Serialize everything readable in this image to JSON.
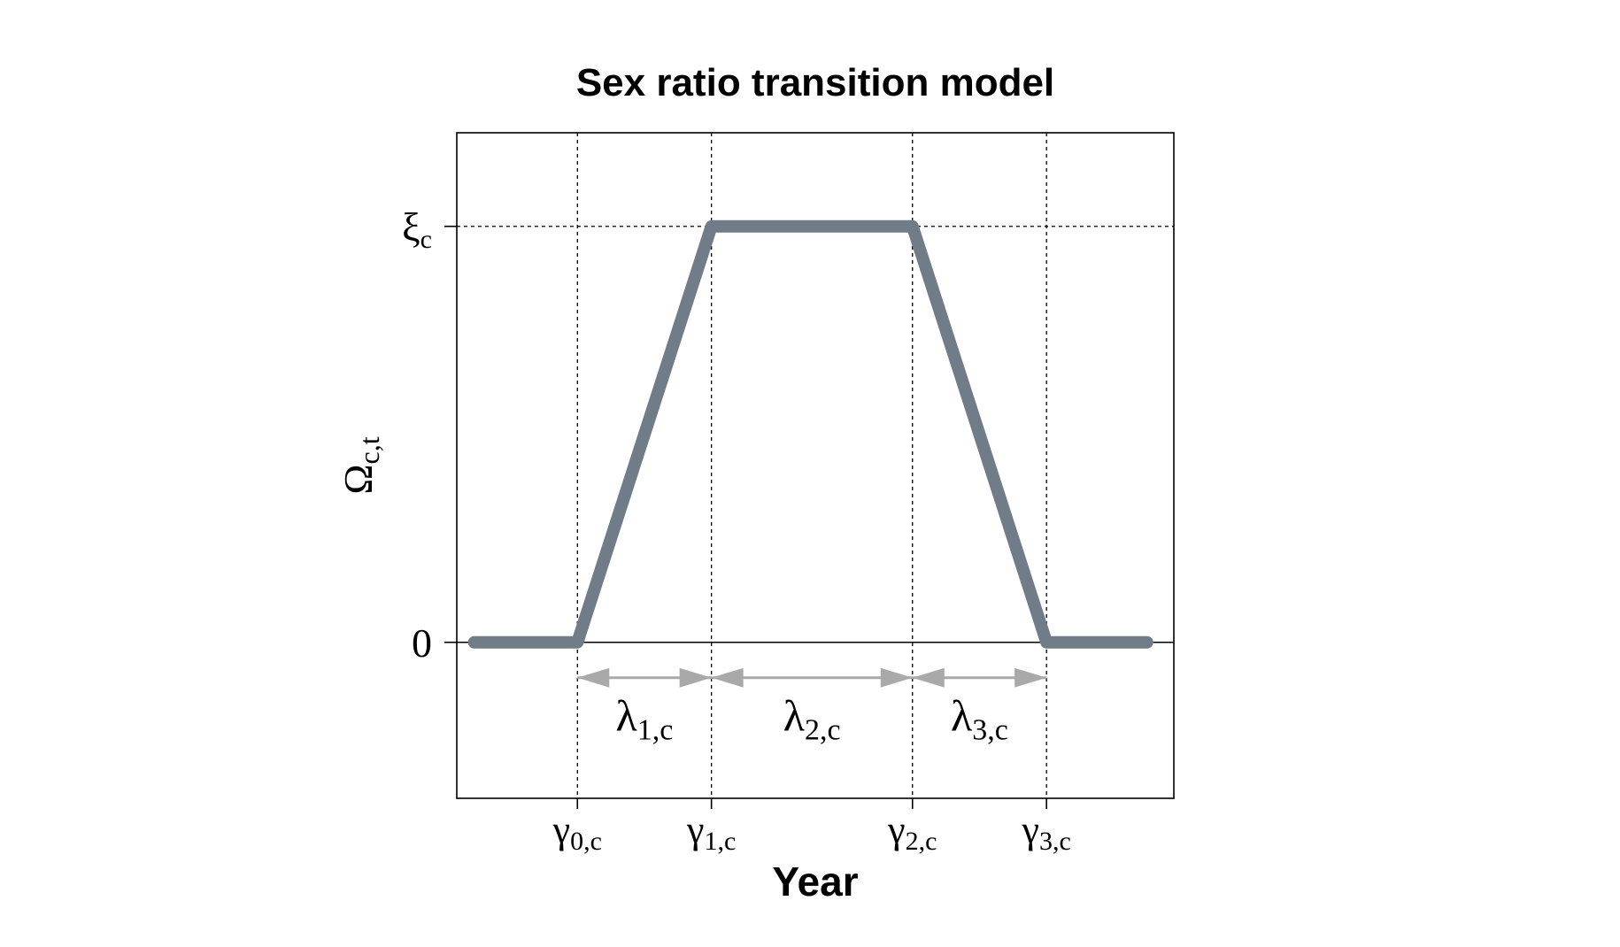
{
  "chart_data": {
    "type": "line",
    "title": "Sex ratio transition model",
    "xlabel": "Year",
    "ylabel": {
      "symbol": "Ω",
      "subscript": "c,t"
    },
    "y_ticks": [
      {
        "value": 0,
        "symbol": "0",
        "subscript": ""
      },
      {
        "value": 1,
        "symbol": "ξ",
        "subscript": "c"
      }
    ],
    "x_ticks": [
      {
        "value": 1,
        "symbol": "γ",
        "subscript": "0,c"
      },
      {
        "value": 2,
        "symbol": "γ",
        "subscript": "1,c"
      },
      {
        "value": 3.5,
        "symbol": "γ",
        "subscript": "2,c"
      },
      {
        "value": 4.5,
        "symbol": "γ",
        "subscript": "3,c"
      }
    ],
    "series": [
      {
        "x": [
          0.23,
          1,
          2,
          3.5,
          4.5,
          5.25
        ],
        "y": [
          0,
          0,
          1,
          1,
          0,
          0
        ]
      }
    ],
    "intervals": [
      {
        "from": 1,
        "to": 2,
        "symbol": "λ",
        "subscript": "1,c"
      },
      {
        "from": 2,
        "to": 3.5,
        "symbol": "λ",
        "subscript": "2,c"
      },
      {
        "from": 3.5,
        "to": 4.5,
        "symbol": "λ",
        "subscript": "3,c"
      }
    ],
    "interval_arrow_y": -0.085,
    "xlim": [
      0.1,
      5.45
    ],
    "ylim": [
      -0.375,
      1.225
    ],
    "grid": "dashed at tick positions",
    "colors": {
      "line": "#717c89",
      "arrows": "#a9a9a9",
      "reference": "#000000"
    }
  }
}
